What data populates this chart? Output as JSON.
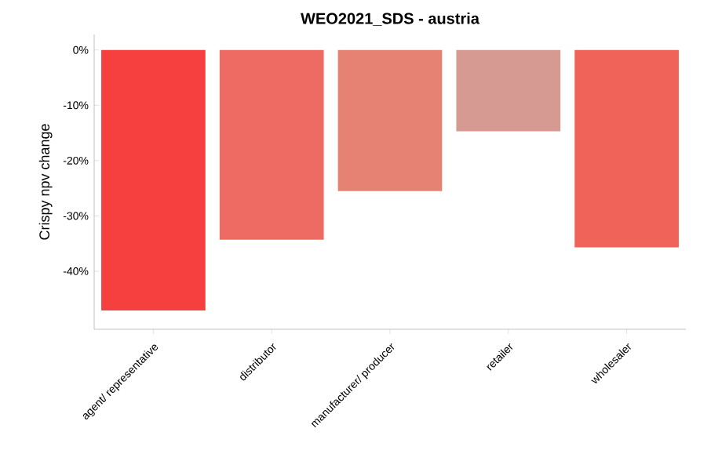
{
  "chart_data": {
    "type": "bar",
    "title": "WEO2021_SDS - austria",
    "ylabel": "Crispy npv change",
    "categories": [
      "agent/ representative",
      "distributor",
      "manufacturer/ producer",
      "retailer",
      "wholesaler"
    ],
    "values": [
      -47.1,
      -34.3,
      -25.5,
      -14.7,
      -35.7
    ],
    "colors": [
      "#f5403f",
      "#ee6b63",
      "#e58273",
      "#d69a93",
      "#ef6358"
    ],
    "ylim": [
      -50.5,
      2.8
    ],
    "yticks": [
      {
        "value": 0,
        "label": "0%"
      },
      {
        "value": -10,
        "label": "-10%"
      },
      {
        "value": -20,
        "label": "-20%"
      },
      {
        "value": -30,
        "label": "-30%"
      },
      {
        "value": -40,
        "label": "-40%"
      }
    ],
    "grid": false
  }
}
